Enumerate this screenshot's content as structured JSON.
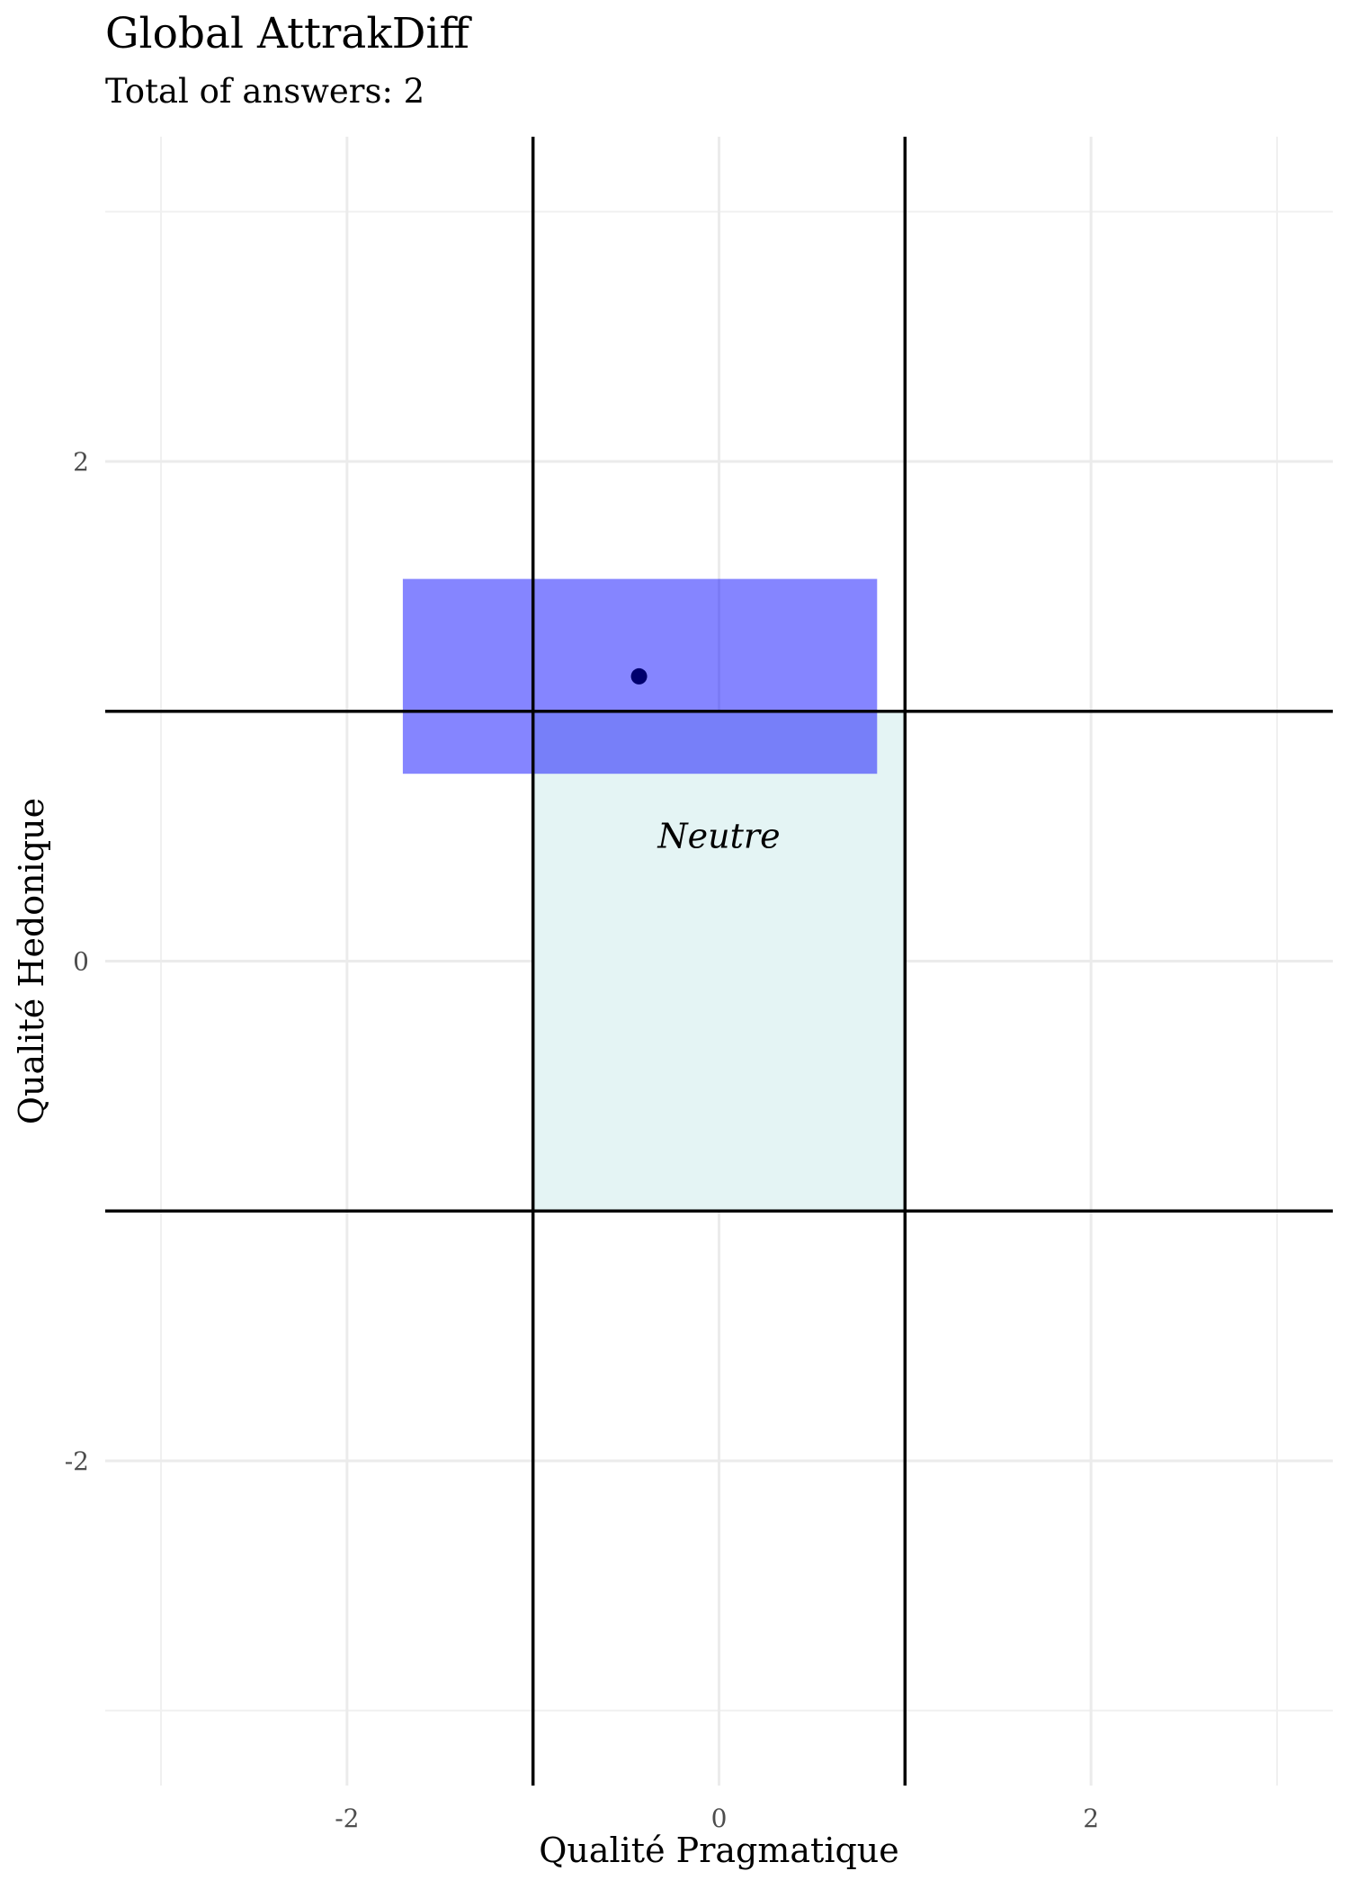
{
  "chart_data": {
    "type": "scatter",
    "title": "Global AttrakDiff",
    "subtitle": "Total of answers: 2",
    "xlabel": "Qualité Pragmatique",
    "ylabel": "Qualité Hedonique",
    "xlim": [
      -3.3,
      3.3
    ],
    "ylim": [
      -3.3,
      3.3
    ],
    "x_ticks": [
      -2,
      0,
      2
    ],
    "y_ticks": [
      -2,
      0,
      2
    ],
    "x_tick_labels": [
      "-2",
      "0",
      "2"
    ],
    "y_tick_labels": [
      "-2",
      "0",
      "2"
    ],
    "grid": true,
    "reference_lines": {
      "x": [
        -1,
        1
      ],
      "y": [
        -1,
        1
      ]
    },
    "regions": [
      {
        "label": "Neutre",
        "x": [
          -1,
          1
        ],
        "y": [
          -1,
          1
        ],
        "color": "#e4f4f4",
        "label_pos": [
          0,
          0.5
        ]
      }
    ],
    "confidence_box": {
      "x": [
        -1.7,
        0.85
      ],
      "y": [
        0.75,
        1.53
      ],
      "color": "#0000ff",
      "opacity": 0.48
    },
    "points": [
      {
        "x": -0.43,
        "y": 1.14,
        "color": "#00006e"
      }
    ]
  }
}
